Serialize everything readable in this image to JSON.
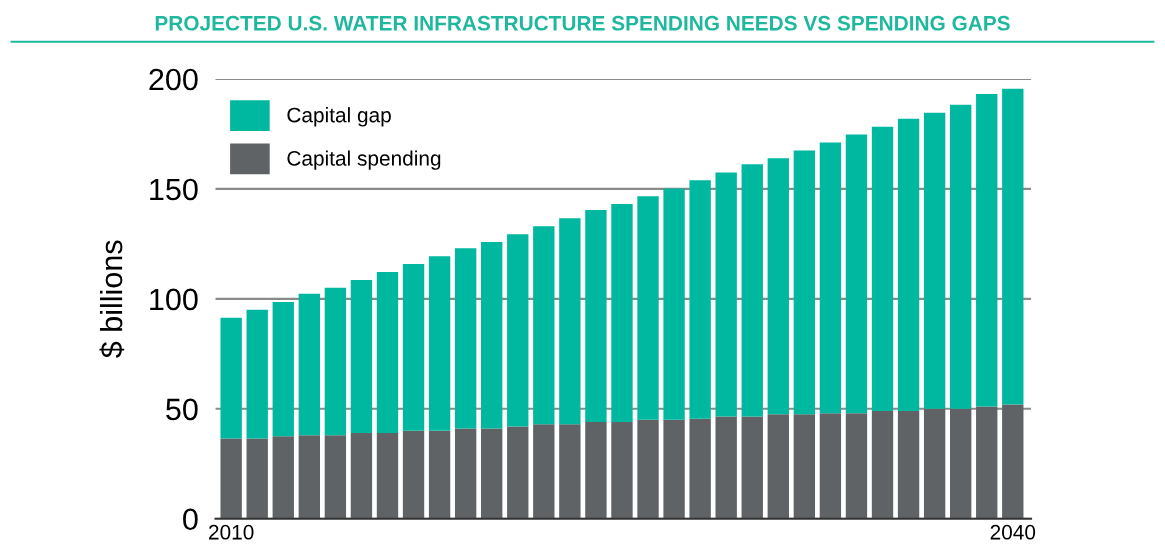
{
  "chart_data": {
    "type": "bar",
    "title": "PROJECTED U.S. WATER INFRASTRUCTURE SPENDING NEEDS VS SPENDING GAPS",
    "ylabel": "$ billions",
    "categories": [
      "2010",
      null,
      null,
      null,
      null,
      null,
      null,
      null,
      null,
      null,
      null,
      null,
      null,
      null,
      null,
      null,
      null,
      null,
      null,
      null,
      null,
      null,
      null,
      null,
      null,
      null,
      null,
      null,
      null,
      null,
      "2040"
    ],
    "stacked": true,
    "series": [
      {
        "name": "Capital spending",
        "color": "#5f6366",
        "values": [
          36.5,
          36.5,
          37.5,
          38,
          38,
          39,
          39,
          40,
          40,
          41,
          41,
          42,
          43,
          43,
          44,
          44,
          45,
          45,
          45.5,
          46.5,
          46.5,
          47.5,
          47.5,
          48,
          48,
          49,
          49,
          50,
          50,
          51,
          52
        ]
      },
      {
        "name": "Capital gap",
        "color": "#00b8a0",
        "values": [
          54.9,
          58.5,
          61.1,
          64.3,
          67,
          69.6,
          73.2,
          75.8,
          79.4,
          82,
          84.8,
          87.4,
          90,
          93.7,
          96.4,
          99.1,
          101.7,
          105.2,
          108.4,
          111,
          114.7,
          116.4,
          120,
          123.1,
          126.7,
          129.3,
          132.9,
          134.6,
          138.3,
          142.1,
          143.5
        ]
      }
    ],
    "ylim": [
      0,
      200
    ],
    "yticks": [
      0,
      50,
      100,
      150,
      200
    ],
    "grid": "y",
    "legend": "top left"
  }
}
